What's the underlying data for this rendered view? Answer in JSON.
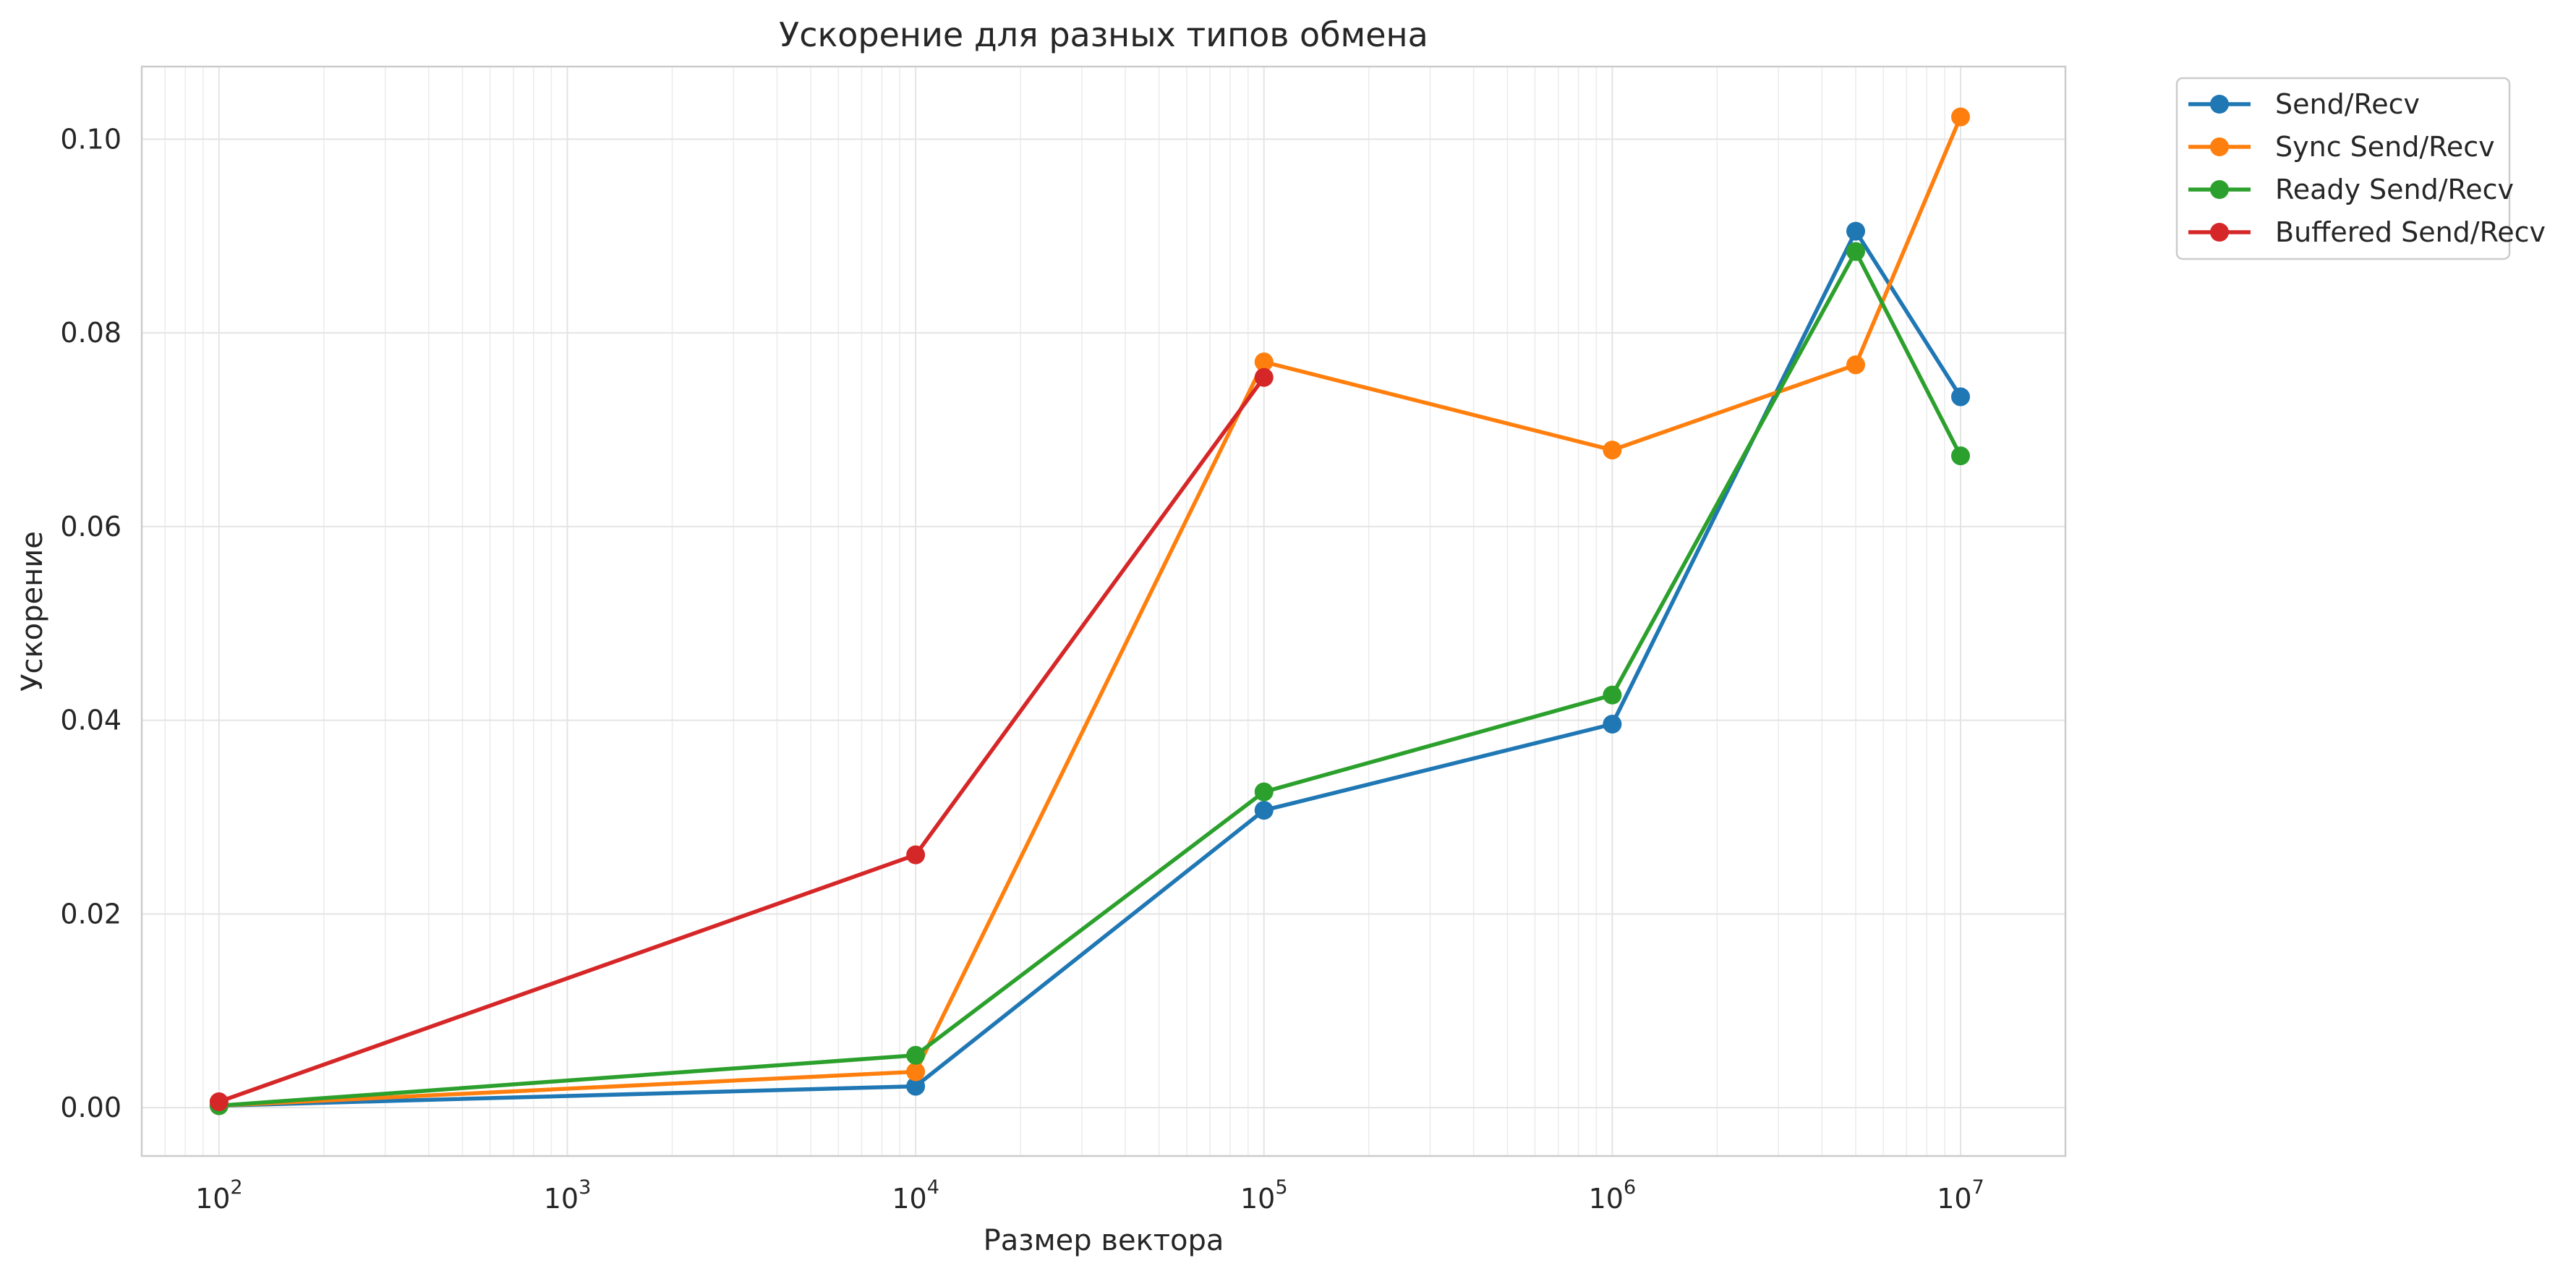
{
  "chart_data": {
    "type": "line",
    "title": "Ускорение для разных типов обмена",
    "xlabel": "Размер вектора",
    "ylabel": "Ускорение",
    "x_scale": "log",
    "xlim": [
      60,
      20000000
    ],
    "ylim": [
      -0.005,
      0.1075
    ],
    "x_ticks": [
      {
        "value": 100,
        "base": "10",
        "exp": "2"
      },
      {
        "value": 1000,
        "base": "10",
        "exp": "3"
      },
      {
        "value": 10000,
        "base": "10",
        "exp": "4"
      },
      {
        "value": 100000,
        "base": "10",
        "exp": "5"
      },
      {
        "value": 1000000,
        "base": "10",
        "exp": "6"
      },
      {
        "value": 10000000,
        "base": "10",
        "exp": "7"
      }
    ],
    "y_ticks": [
      {
        "value": 0.0,
        "label": "0.00"
      },
      {
        "value": 0.02,
        "label": "0.02"
      },
      {
        "value": 0.04,
        "label": "0.04"
      },
      {
        "value": 0.06,
        "label": "0.06"
      },
      {
        "value": 0.08,
        "label": "0.08"
      },
      {
        "value": 0.1,
        "label": "0.10"
      }
    ],
    "grid": true,
    "legend_position": "outside-top-right",
    "series": [
      {
        "name": "Send/Recv",
        "color": "#1f77b4",
        "x": [
          100,
          10000,
          100000,
          1000000,
          5000000,
          10000000
        ],
        "y": [
          0.0002,
          0.0022,
          0.0307,
          0.0396,
          0.0905,
          0.0734
        ]
      },
      {
        "name": "Sync Send/Recv",
        "color": "#ff7f0e",
        "x": [
          100,
          10000,
          100000,
          1000000,
          5000000,
          10000000
        ],
        "y": [
          0.0002,
          0.0037,
          0.077,
          0.0679,
          0.0767,
          0.1023
        ]
      },
      {
        "name": "Ready Send/Recv",
        "color": "#2ca02c",
        "x": [
          100,
          10000,
          100000,
          1000000,
          5000000,
          10000000
        ],
        "y": [
          0.0002,
          0.0054,
          0.0326,
          0.0426,
          0.0884,
          0.0673
        ]
      },
      {
        "name": "Buffered Send/Recv",
        "color": "#d62728",
        "x": [
          100,
          10000,
          100000
        ],
        "y": [
          0.0006,
          0.0261,
          0.0754
        ]
      }
    ]
  }
}
